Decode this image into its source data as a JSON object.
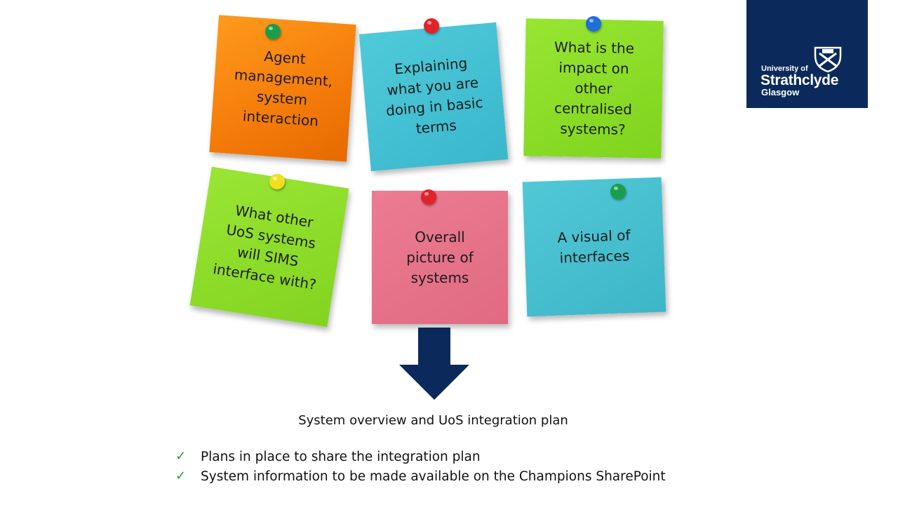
{
  "logo": {
    "line1": "University of",
    "line2": "Strathclyde",
    "line3": "Glasgow",
    "background": "#0b2a5b"
  },
  "notes": [
    {
      "text": "Agent\nmanagement,\nsystem\ninteraction",
      "color": "#f47b0a",
      "pin_color": "#1a9e4b"
    },
    {
      "text": "Explaining\nwhat you are\ndoing in basic\nterms",
      "color": "#39b7cc",
      "pin_color": "#e0242a"
    },
    {
      "text": "What is the\nimpact on\nother\ncentralised\nsystems?",
      "color": "#7fd41d",
      "pin_color": "#1f6fd8"
    },
    {
      "text": "What other\nUoS systems\nwill SIMS\ninterface with?",
      "color": "#82d41f",
      "pin_color": "#f2df1f"
    },
    {
      "text": "Overall\npicture of\nsystems",
      "color": "#e06a82",
      "pin_color": "#e0242a"
    },
    {
      "text": "A visual of\ninterfaces",
      "color": "#3cb6c8",
      "pin_color": "#1a9e4b"
    }
  ],
  "arrow_color": "#0b2a5b",
  "caption": "System overview and UoS integration plan",
  "bullets": [
    {
      "icon": "check-icon",
      "text": "Plans in place to share the integration plan"
    },
    {
      "icon": "check-icon",
      "text": "System information to be made available on the Champions SharePoint"
    }
  ],
  "check_color": "#1f9a3a"
}
